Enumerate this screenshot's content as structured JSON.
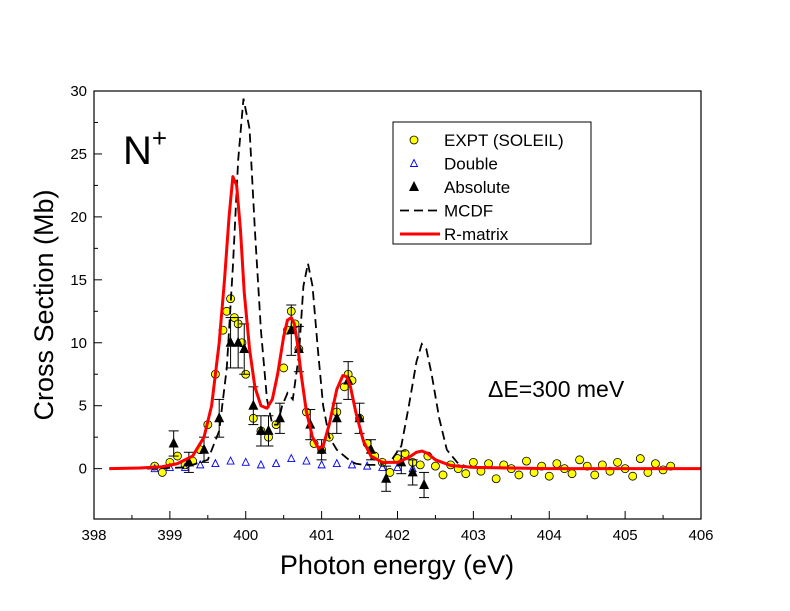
{
  "chart_data": {
    "type": "scatter",
    "title": "",
    "ion_label": "N",
    "ion_charge": "+",
    "xlabel": "Photon energy (eV)",
    "ylabel": "Cross Section (Mb)",
    "xlim": [
      398,
      406
    ],
    "ylim": [
      -4,
      30
    ],
    "xticks": [
      398,
      399,
      400,
      401,
      402,
      403,
      404,
      405,
      406
    ],
    "yticks": [
      0,
      5,
      10,
      15,
      20,
      25,
      30
    ],
    "annotation": "ΔE=300 meV",
    "legend_position": "top-right",
    "legend": [
      {
        "label": "EXPT (SOLEIL)",
        "marker": "circle",
        "color": "#ffff00",
        "edge": "#000000"
      },
      {
        "label": "Double",
        "marker": "open-triangle",
        "color": "#0000ff"
      },
      {
        "label": "Absolute",
        "marker": "filled-triangle",
        "color": "#000000"
      },
      {
        "label": "MCDF",
        "marker": "dashed-line",
        "color": "#000000"
      },
      {
        "label": "R-matrix",
        "marker": "solid-line",
        "color": "#ff0000"
      }
    ],
    "series": [
      {
        "name": "R-matrix",
        "style": "line",
        "color": "#ff0000",
        "x": [
          398.2,
          398.6,
          398.9,
          399.1,
          399.3,
          399.45,
          399.55,
          399.65,
          399.72,
          399.78,
          399.83,
          399.88,
          399.93,
          399.98,
          400.05,
          400.12,
          400.2,
          400.28,
          400.35,
          400.42,
          400.5,
          400.55,
          400.6,
          400.64,
          400.68,
          400.73,
          400.8,
          400.88,
          400.96,
          401.02,
          401.1,
          401.2,
          401.28,
          401.33,
          401.38,
          401.45,
          401.55,
          401.65,
          401.8,
          402.0,
          402.15,
          402.25,
          402.32,
          402.4,
          402.5,
          402.7,
          403.0,
          403.5,
          404.0,
          405.0,
          406.0
        ],
        "y": [
          0.0,
          0.05,
          0.15,
          0.4,
          1.0,
          2.5,
          5.0,
          10.0,
          15.0,
          20.0,
          23.2,
          22.5,
          19.0,
          14.0,
          9.5,
          6.5,
          5.0,
          4.8,
          5.5,
          7.5,
          10.5,
          11.8,
          12.0,
          11.5,
          10.0,
          7.5,
          4.5,
          2.5,
          1.6,
          1.8,
          3.5,
          6.3,
          7.4,
          7.3,
          6.5,
          4.5,
          2.2,
          1.0,
          0.5,
          0.5,
          0.9,
          1.3,
          1.4,
          1.2,
          0.7,
          0.25,
          0.1,
          0.05,
          0.0,
          0.0,
          0.0
        ]
      },
      {
        "name": "MCDF",
        "style": "dashed-line",
        "color": "#000000",
        "x": [
          398.7,
          399.2,
          399.5,
          399.65,
          399.75,
          399.83,
          399.9,
          399.97,
          400.05,
          400.12,
          400.2,
          400.28,
          400.35,
          400.42,
          400.48,
          400.55,
          400.62,
          400.7,
          400.76,
          400.82,
          400.88,
          400.95,
          401.02,
          401.1,
          401.2,
          401.3,
          401.38,
          401.45,
          401.55,
          401.7,
          401.9,
          402.05,
          402.15,
          402.25,
          402.32,
          402.38,
          402.45,
          402.55,
          402.65,
          402.8,
          403.0
        ],
        "y": [
          0.0,
          0.1,
          0.7,
          3.0,
          8.0,
          16.0,
          24.5,
          29.4,
          27.0,
          19.0,
          11.0,
          5.5,
          3.5,
          3.5,
          5.0,
          6.0,
          5.5,
          9.0,
          14.5,
          16.3,
          14.5,
          9.5,
          5.0,
          2.5,
          1.5,
          1.0,
          0.6,
          0.4,
          0.3,
          0.3,
          0.5,
          1.8,
          5.0,
          8.5,
          9.9,
          9.5,
          7.5,
          4.0,
          1.5,
          0.4,
          0.0
        ]
      },
      {
        "name": "EXPT (SOLEIL)",
        "style": "points",
        "x": [
          398.8,
          398.9,
          399.0,
          399.1,
          399.2,
          399.3,
          399.4,
          399.5,
          399.6,
          399.7,
          399.75,
          399.8,
          399.85,
          399.9,
          399.95,
          400.0,
          400.1,
          400.2,
          400.3,
          400.4,
          400.5,
          400.55,
          400.6,
          400.65,
          400.7,
          400.8,
          400.9,
          401.0,
          401.1,
          401.2,
          401.3,
          401.35,
          401.4,
          401.5,
          401.6,
          401.7,
          401.8,
          401.9,
          402.0,
          402.1,
          402.2,
          402.3,
          402.4,
          402.5,
          402.6,
          402.7,
          402.8,
          402.9,
          403.0,
          403.1,
          403.2,
          403.3,
          403.4,
          403.5,
          403.6,
          403.7,
          403.8,
          403.9,
          404.0,
          404.1,
          404.2,
          404.3,
          404.4,
          404.5,
          404.6,
          404.7,
          404.8,
          404.9,
          405.0,
          405.1,
          405.2,
          405.3,
          405.4,
          405.5,
          405.6
        ],
        "y": [
          0.2,
          -0.3,
          0.5,
          1.0,
          0.3,
          0.6,
          1.5,
          3.5,
          7.5,
          11.0,
          12.5,
          13.5,
          12.0,
          11.5,
          10.0,
          7.5,
          4.0,
          3.0,
          2.5,
          3.5,
          8.0,
          11.0,
          12.5,
          11.5,
          9.5,
          4.5,
          2.0,
          1.5,
          2.5,
          4.5,
          6.5,
          7.5,
          7.0,
          4.0,
          2.0,
          1.0,
          0.5,
          -0.3,
          0.8,
          1.2,
          0.5,
          0.3,
          1.0,
          0.2,
          -0.5,
          0.3,
          0.0,
          -0.4,
          0.5,
          -0.2,
          0.4,
          -0.8,
          0.3,
          0.0,
          -0.5,
          0.6,
          -0.3,
          0.2,
          -0.6,
          0.4,
          0.0,
          -0.4,
          0.7,
          0.2,
          -0.5,
          0.3,
          -0.2,
          0.5,
          0.0,
          -0.6,
          0.8,
          -0.3,
          0.4,
          -0.1,
          0.2
        ]
      },
      {
        "name": "Double",
        "style": "points",
        "x": [
          398.8,
          399.0,
          399.2,
          399.4,
          399.6,
          399.8,
          400.0,
          400.2,
          400.4,
          400.6,
          400.8,
          401.0,
          401.2,
          401.4,
          401.6,
          401.8,
          402.0,
          402.2
        ],
        "y": [
          0.0,
          0.1,
          0.1,
          0.3,
          0.4,
          0.6,
          0.5,
          0.3,
          0.4,
          0.8,
          0.6,
          0.3,
          0.4,
          0.3,
          0.2,
          0.1,
          0.1,
          0.0
        ]
      },
      {
        "name": "Absolute",
        "style": "points-errorbars",
        "x": [
          399.05,
          399.25,
          399.45,
          399.65,
          399.8,
          399.9,
          399.98,
          400.1,
          400.2,
          400.3,
          400.45,
          400.6,
          400.7,
          400.85,
          401.0,
          401.2,
          401.35,
          401.5,
          401.65,
          401.85,
          402.05,
          402.2,
          402.35
        ],
        "y": [
          2.0,
          0.5,
          1.5,
          4.0,
          10.0,
          10.0,
          9.5,
          5.0,
          3.0,
          3.0,
          4.0,
          11.0,
          9.5,
          3.5,
          1.5,
          4.0,
          7.0,
          4.0,
          1.5,
          -0.8,
          0.5,
          -0.3,
          -1.3
        ],
        "err": [
          1.0,
          0.8,
          1.0,
          1.5,
          2.0,
          2.0,
          2.0,
          1.5,
          1.2,
          1.2,
          1.2,
          2.0,
          1.8,
          1.2,
          0.8,
          1.2,
          1.5,
          1.2,
          0.8,
          1.0,
          0.9,
          1.0,
          1.0
        ]
      }
    ]
  }
}
